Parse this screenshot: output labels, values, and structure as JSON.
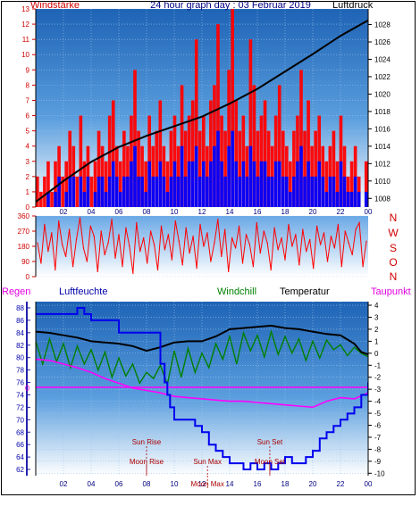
{
  "chart_data": [
    {
      "type": "line",
      "title": "24 hour graph day : 03 Februar 2019",
      "left_axis_label": "Windstärke",
      "right_axis_label": "Luftdruck",
      "x_ticks": [
        "02",
        "04",
        "06",
        "08",
        "10",
        "12",
        "14",
        "16",
        "18",
        "20",
        "22",
        "00"
      ],
      "left_ticks": [
        "0",
        "1",
        "2",
        "3",
        "4",
        "5",
        "6",
        "7",
        "8",
        "9",
        "10",
        "11",
        "12",
        "13"
      ],
      "right_ticks": [
        "1008",
        "1010",
        "1012",
        "1014",
        "1016",
        "1018",
        "1020",
        "1022",
        "1024",
        "1026",
        "1028"
      ],
      "ylim_left": [
        0,
        13
      ],
      "ylim_right": [
        1007,
        1029.8
      ],
      "series": [
        {
          "name": "Windstärke",
          "color": "#ff0000",
          "style": "step-bars",
          "values": [
            2,
            1,
            2,
            3,
            1,
            3,
            4,
            2,
            3,
            5,
            4,
            2,
            6,
            3,
            4,
            2,
            3,
            5,
            4,
            3,
            6,
            7,
            4,
            3,
            5,
            4,
            6,
            9,
            5,
            4,
            3,
            6,
            4,
            5,
            7,
            4,
            3,
            5,
            6,
            4,
            8,
            5,
            6,
            7,
            11,
            5,
            6,
            4,
            7,
            8,
            12,
            6,
            5,
            9,
            13,
            7,
            5,
            6,
            4,
            11,
            8,
            5,
            6,
            7,
            5,
            4,
            6,
            8,
            5,
            4,
            3,
            5,
            6,
            9,
            5,
            7,
            4,
            5,
            6,
            4,
            3,
            4,
            5,
            3,
            6,
            4,
            2,
            3,
            4,
            2,
            0,
            3
          ]
        },
        {
          "name": "Böen",
          "color": "#0000ff",
          "style": "step-bars",
          "values": [
            0,
            0,
            0,
            1,
            0,
            1,
            2,
            0,
            1,
            2,
            2,
            0,
            2,
            1,
            2,
            0,
            1,
            2,
            2,
            1,
            2,
            3,
            2,
            1,
            2,
            2,
            3,
            4,
            2,
            2,
            1,
            3,
            2,
            2,
            3,
            2,
            1,
            2,
            3,
            2,
            4,
            2,
            3,
            3,
            4,
            2,
            3,
            2,
            3,
            4,
            5,
            3,
            2,
            4,
            5,
            3,
            2,
            3,
            2,
            4,
            3,
            2,
            3,
            3,
            2,
            2,
            3,
            3,
            2,
            2,
            1,
            2,
            3,
            4,
            2,
            3,
            2,
            2,
            3,
            2,
            1,
            2,
            2,
            1,
            3,
            2,
            1,
            1,
            2,
            1,
            0,
            1
          ]
        },
        {
          "name": "Luftdruck",
          "color": "#000000",
          "axis": "right",
          "x": [
            0,
            2,
            4,
            6,
            8,
            10,
            12,
            14,
            16,
            18,
            20,
            22,
            24
          ],
          "values": [
            1007.6,
            1010.0,
            1012.2,
            1013.9,
            1015.2,
            1016.3,
            1017.4,
            1018.9,
            1020.6,
            1022.6,
            1024.6,
            1026.7,
            1028.5
          ]
        }
      ]
    },
    {
      "type": "scatter",
      "left_ticks": [
        "0",
        "90",
        "180",
        "270",
        "360"
      ],
      "right_labels": [
        "N",
        "W",
        "S",
        "O",
        "N"
      ],
      "ylim": [
        0,
        360
      ],
      "series": [
        {
          "name": "Windrichtung",
          "color": "#ff0000",
          "values": [
            200,
            80,
            310,
            150,
            260,
            40,
            330,
            190,
            120,
            280,
            60,
            220,
            350,
            170,
            90,
            300,
            240,
            30,
            270,
            130,
            200,
            340,
            110,
            250,
            60,
            290,
            180,
            20,
            320,
            150,
            230,
            80,
            270,
            190,
            40,
            300,
            160,
            250,
            100,
            330,
            210,
            70,
            290,
            140,
            240,
            50,
            310,
            180,
            260,
            90,
            200,
            340,
            120,
            280,
            30,
            230,
            170,
            300,
            80,
            250,
            190,
            60,
            320,
            140,
            270,
            200,
            40,
            290,
            160,
            230,
            100,
            310,
            180,
            250,
            70,
            280,
            150,
            220,
            50,
            300,
            190,
            260,
            90,
            240,
            170,
            310,
            60,
            270,
            200,
            130,
            280,
            320,
            60,
            210
          ]
        }
      ]
    },
    {
      "type": "line",
      "labels": [
        "Regen",
        "Luftfeuchte",
        "Windchill",
        "Temperatur",
        "Taupunkt"
      ],
      "left_ticks": [
        "62",
        "64",
        "66",
        "68",
        "70",
        "72",
        "74",
        "76",
        "78",
        "80",
        "82",
        "84",
        "86",
        "88"
      ],
      "right_ticks": [
        "4",
        "3",
        "2",
        "1",
        "0",
        "-1",
        "-2",
        "-3",
        "-4",
        "-5",
        "-6",
        "-7",
        "-8",
        "-9",
        "-10"
      ],
      "rain_zero": "0",
      "ylim_humidity": [
        61,
        89
      ],
      "ylim_temperature": [
        -10.2,
        4.3
      ],
      "series": [
        {
          "name": "Luftfeuchte",
          "color": "#0000ee",
          "axis": "left",
          "x": [
            0,
            1,
            2,
            2.8,
            3,
            3.5,
            4,
            6,
            8.8,
            9,
            9.3,
            9.5,
            9.7,
            10,
            10.5,
            11,
            11.5,
            12,
            12.5,
            13,
            13.5,
            14,
            14.5,
            15,
            15.5,
            16,
            16.5,
            17,
            17.5,
            18,
            18.5,
            19,
            19.5,
            20,
            20.5,
            21,
            21.5,
            22,
            22.5,
            23,
            23.5,
            24
          ],
          "values": [
            87,
            87,
            87,
            87,
            88,
            87,
            86,
            84,
            84,
            79,
            76,
            74,
            72,
            70,
            70,
            70,
            69,
            68,
            66,
            65,
            64,
            63,
            63,
            62,
            63,
            62,
            63,
            62,
            63,
            64,
            63,
            63,
            64,
            65,
            67,
            68,
            69,
            70,
            71,
            72,
            74,
            76
          ]
        },
        {
          "name": "Temperatur",
          "color": "#000000",
          "axis": "right",
          "x": [
            0,
            1,
            2,
            3,
            4,
            5,
            6,
            7,
            8,
            9,
            10,
            11,
            12,
            13,
            14,
            15,
            16,
            17,
            18,
            19,
            20,
            21,
            22,
            23,
            23.5,
            24
          ],
          "values": [
            1.8,
            1.7,
            1.5,
            1.3,
            1.0,
            0.9,
            0.8,
            0.6,
            0.2,
            0.5,
            0.9,
            1.0,
            1.0,
            1.4,
            2.0,
            2.1,
            2.2,
            2.3,
            2.1,
            2.0,
            1.8,
            1.6,
            1.5,
            0.8,
            0.1,
            -0.1
          ]
        },
        {
          "name": "Windchill",
          "color": "#008000",
          "axis": "right",
          "x": [
            0,
            0.5,
            1,
            1.5,
            2,
            2.5,
            3,
            3.5,
            4,
            4.5,
            5,
            5.5,
            6,
            6.5,
            7,
            7.5,
            8,
            8.5,
            9,
            9.5,
            10,
            10.5,
            11,
            11.5,
            12,
            12.5,
            13,
            13.5,
            14,
            14.5,
            15,
            15.5,
            16,
            16.5,
            17,
            17.5,
            18,
            18.5,
            19,
            19.5,
            20,
            20.5,
            21,
            21.5,
            22,
            22.5,
            23,
            23.5,
            24
          ],
          "values": [
            1.0,
            -0.9,
            1.2,
            -0.7,
            0.8,
            -1.2,
            0.6,
            -0.9,
            0.3,
            -1.4,
            0.1,
            -2.0,
            -0.4,
            -1.9,
            -0.9,
            -2.5,
            -1.6,
            -2.1,
            -1.0,
            -2.6,
            0.2,
            -2.0,
            0.4,
            -1.6,
            0.0,
            -1.2,
            0.8,
            -0.5,
            1.4,
            -0.9,
            1.7,
            0.2,
            1.5,
            -0.3,
            1.8,
            -0.1,
            1.4,
            0.0,
            1.2,
            -0.6,
            1.0,
            -0.4,
            1.1,
            0.3,
            0.7,
            -0.2,
            0.5,
            0.0,
            -0.3
          ]
        },
        {
          "name": "Taupunkt",
          "color": "#ff00ff",
          "axis": "right",
          "x": [
            0,
            1,
            2,
            3,
            4,
            5,
            6,
            7,
            8,
            9,
            10,
            11,
            12,
            13,
            14,
            15,
            16,
            17,
            18,
            19,
            20,
            21,
            22,
            23,
            24
          ],
          "values": [
            -0.5,
            -0.6,
            -0.9,
            -1.2,
            -1.6,
            -2.1,
            -2.5,
            -2.9,
            -3.1,
            -3.3,
            -3.6,
            -3.7,
            -3.8,
            -3.9,
            -4.0,
            -4.0,
            -4.1,
            -4.2,
            -4.3,
            -4.4,
            -4.5,
            -4.0,
            -3.7,
            -3.8,
            -3.3
          ]
        }
      ],
      "annotations": [
        {
          "text": "Sun Rise",
          "x": 8.0
        },
        {
          "text": "Moon Rise",
          "x": 8.0
        },
        {
          "text": "Sun Set",
          "x": 16.9
        },
        {
          "text": "Moon Set",
          "x": 16.9
        },
        {
          "text": "Sun Max",
          "x": 12.4
        },
        {
          "text": "Moon Max",
          "x": 12.4
        }
      ]
    }
  ]
}
